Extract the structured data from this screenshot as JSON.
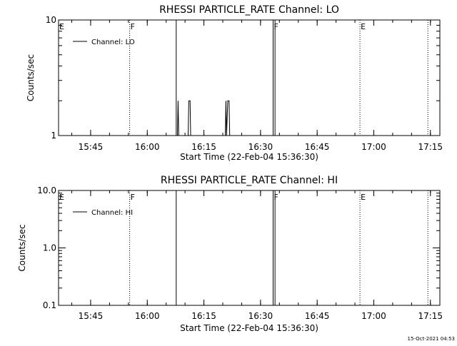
{
  "footer_timestamp": "15-Oct-2021 04:53",
  "chart_data": [
    {
      "type": "line",
      "title": "RHESSI PARTICLE_RATE Channel: LO",
      "xlabel": "Start Time (22-Feb-04 15:36:30)",
      "ylabel": "Counts/sec",
      "yscale": "log",
      "ylim": [
        1,
        10
      ],
      "xlim": [
        "15:36:30",
        "17:17:30"
      ],
      "x_ticks": [
        "15:45",
        "16:00",
        "16:15",
        "16:30",
        "16:45",
        "17:00",
        "17:15"
      ],
      "y_ticks": [
        "1",
        "10"
      ],
      "grid": false,
      "legend": {
        "position": "top-left",
        "entries": [
          "Channel: LO"
        ]
      },
      "series": [
        {
          "name": "Channel: LO",
          "points": [
            [
              "16:08:00",
              1
            ],
            [
              "16:08:10",
              2
            ],
            [
              "16:08:20",
              1
            ],
            [
              "16:10:50",
              1
            ],
            [
              "16:11:00",
              2
            ],
            [
              "16:11:20",
              2
            ],
            [
              "16:11:30",
              1
            ],
            [
              "16:20:40",
              1
            ],
            [
              "16:20:50",
              2
            ],
            [
              "16:21:00",
              1
            ],
            [
              "16:21:20",
              2
            ],
            [
              "16:21:40",
              2
            ],
            [
              "16:21:50",
              1
            ]
          ]
        }
      ],
      "markers": [
        {
          "label": "E",
          "time": "15:36:30",
          "style": "dotted"
        },
        {
          "label": "F",
          "time": "15:55:20",
          "style": "dotted"
        },
        {
          "label": "",
          "time": "16:07:40",
          "style": "solid"
        },
        {
          "label": "F",
          "time": "16:33:20",
          "style": "solid"
        },
        {
          "label": "",
          "time": "16:33:50",
          "style": "solid"
        },
        {
          "label": "E",
          "time": "16:56:20",
          "style": "dotted"
        },
        {
          "label": "",
          "time": "17:14:20",
          "style": "dotted"
        }
      ]
    },
    {
      "type": "line",
      "title": "RHESSI PARTICLE_RATE Channel: HI",
      "xlabel": "Start Time (22-Feb-04 15:36:30)",
      "ylabel": "Counts/sec",
      "yscale": "log",
      "ylim": [
        0.1,
        10
      ],
      "xlim": [
        "15:36:30",
        "17:17:30"
      ],
      "x_ticks": [
        "15:45",
        "16:00",
        "16:15",
        "16:30",
        "16:45",
        "17:00",
        "17:15"
      ],
      "y_ticks": [
        "0.1",
        "1.0",
        "10.0"
      ],
      "grid": false,
      "legend": {
        "position": "top-left",
        "entries": [
          "Channel: HI"
        ]
      },
      "series": [
        {
          "name": "Channel: HI",
          "points": []
        }
      ],
      "markers": [
        {
          "label": "E",
          "time": "15:36:30",
          "style": "dotted"
        },
        {
          "label": "F",
          "time": "15:55:20",
          "style": "dotted"
        },
        {
          "label": "",
          "time": "16:07:40",
          "style": "solid"
        },
        {
          "label": "F",
          "time": "16:33:20",
          "style": "solid"
        },
        {
          "label": "",
          "time": "16:33:50",
          "style": "solid"
        },
        {
          "label": "E",
          "time": "16:56:20",
          "style": "dotted"
        },
        {
          "label": "",
          "time": "17:14:20",
          "style": "dotted"
        }
      ]
    }
  ]
}
